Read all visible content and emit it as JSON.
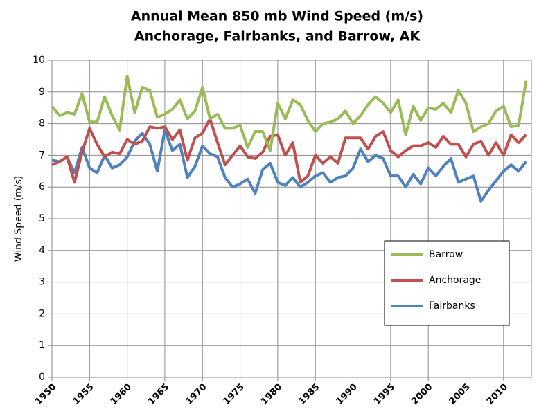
{
  "chart_data": {
    "type": "line",
    "title": "Annual Mean 850 mb Wind Speed (m/s)",
    "subtitle": "Anchorage, Fairbanks, and Barrow, AK",
    "y_label": "Wind Speed (m/s)",
    "x": [
      1950,
      1951,
      1952,
      1953,
      1954,
      1955,
      1956,
      1957,
      1958,
      1959,
      1960,
      1961,
      1962,
      1963,
      1964,
      1965,
      1966,
      1967,
      1968,
      1969,
      1970,
      1971,
      1972,
      1973,
      1974,
      1975,
      1976,
      1977,
      1978,
      1979,
      1980,
      1981,
      1982,
      1983,
      1984,
      1985,
      1986,
      1987,
      1988,
      1989,
      1990,
      1991,
      1992,
      1993,
      1994,
      1995,
      1996,
      1997,
      1998,
      1999,
      2000,
      2001,
      2002,
      2003,
      2004,
      2005,
      2006,
      2007,
      2008,
      2009,
      2010,
      2011,
      2012,
      2013
    ],
    "series": [
      {
        "name": "Barrow",
        "color": "#9bbb59",
        "values": [
          8.55,
          8.25,
          8.35,
          8.3,
          8.95,
          8.05,
          8.05,
          8.85,
          8.25,
          7.8,
          9.5,
          8.35,
          9.15,
          9.05,
          8.2,
          8.3,
          8.45,
          8.75,
          8.15,
          8.4,
          9.15,
          8.15,
          8.3,
          7.85,
          7.85,
          7.95,
          7.25,
          7.75,
          7.75,
          7.15,
          8.65,
          8.15,
          8.75,
          8.6,
          8.1,
          7.75,
          8.0,
          8.05,
          8.15,
          8.4,
          8.0,
          8.25,
          8.6,
          8.85,
          8.65,
          8.35,
          8.75,
          7.65,
          8.55,
          8.1,
          8.5,
          8.45,
          8.65,
          8.35,
          9.05,
          8.65,
          7.75,
          7.9,
          8.0,
          8.4,
          8.55,
          7.9,
          7.95,
          9.35
        ]
      },
      {
        "name": "Anchorage",
        "color": "#c0504d",
        "values": [
          6.7,
          6.8,
          6.95,
          6.15,
          7.1,
          7.85,
          7.35,
          6.95,
          7.1,
          7.05,
          7.5,
          7.35,
          7.45,
          7.9,
          7.85,
          7.9,
          7.5,
          7.8,
          6.85,
          7.55,
          7.7,
          8.15,
          7.4,
          6.7,
          7.0,
          7.3,
          6.95,
          6.9,
          7.1,
          7.6,
          7.65,
          7.0,
          7.4,
          6.15,
          6.35,
          7.0,
          6.75,
          6.95,
          6.75,
          7.55,
          7.55,
          7.55,
          7.2,
          7.6,
          7.75,
          7.15,
          6.95,
          7.15,
          7.3,
          7.3,
          7.4,
          7.25,
          7.6,
          7.35,
          7.35,
          6.95,
          7.35,
          7.45,
          7.0,
          7.4,
          7.0,
          7.65,
          7.4,
          7.65
        ]
      },
      {
        "name": "Fairbanks",
        "color": "#4f81bd",
        "values": [
          6.85,
          6.8,
          6.95,
          6.45,
          7.25,
          6.6,
          6.45,
          7.0,
          6.6,
          6.7,
          6.95,
          7.45,
          7.7,
          7.35,
          6.5,
          7.8,
          7.15,
          7.35,
          6.3,
          6.65,
          7.3,
          7.05,
          6.95,
          6.3,
          6.0,
          6.1,
          6.25,
          5.8,
          6.55,
          6.75,
          6.15,
          6.05,
          6.3,
          6.0,
          6.15,
          6.35,
          6.45,
          6.15,
          6.3,
          6.35,
          6.6,
          7.2,
          6.8,
          7.0,
          6.9,
          6.35,
          6.35,
          6.0,
          6.4,
          6.1,
          6.6,
          6.35,
          6.65,
          6.9,
          6.15,
          6.25,
          6.35,
          5.55,
          5.9,
          6.2,
          6.5,
          6.7,
          6.5,
          6.8
        ]
      }
    ],
    "xlim": [
      1950,
      2013.7
    ],
    "xticks": [
      1950,
      1955,
      1960,
      1965,
      1970,
      1975,
      1980,
      1985,
      1990,
      1995,
      2000,
      2005,
      2010
    ],
    "ylim": [
      0,
      10
    ],
    "yticks": [
      0,
      1,
      2,
      3,
      4,
      5,
      6,
      7,
      8,
      9,
      10
    ],
    "grid": true,
    "legend_position": "right"
  }
}
